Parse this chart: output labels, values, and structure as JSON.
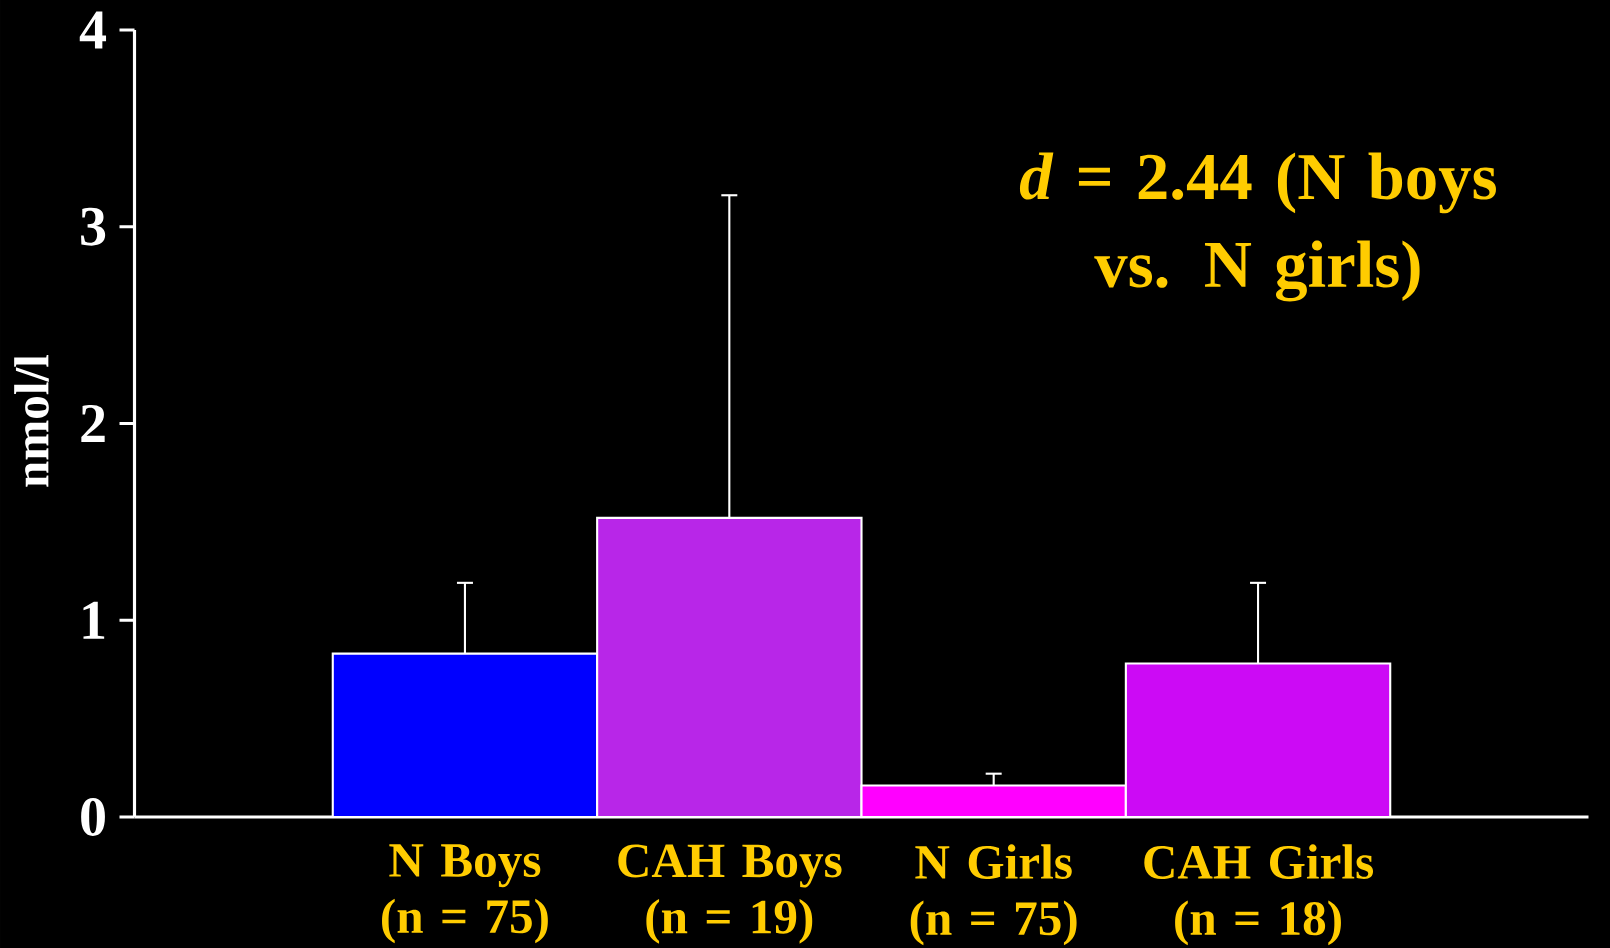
{
  "chart_data": {
    "type": "bar",
    "categories": [
      "N Boys (n = 75)",
      "CAH Boys (n = 19)",
      "N Girls (n = 75)",
      "CAH Girls (n = 18)"
    ],
    "values": [
      0.83,
      1.52,
      0.16,
      0.78
    ],
    "errors": [
      [
        0.83,
        1.19
      ],
      [
        1.52,
        3.16
      ],
      [
        0.16,
        0.22
      ],
      [
        0.78,
        1.19
      ]
    ],
    "colors": [
      "#0000ff",
      "#b826e8",
      "#ff00ff",
      "#cc0af5"
    ],
    "ylabel": "nmol/l",
    "ylim": [
      0,
      4
    ],
    "yticks": [
      0,
      1,
      2,
      3,
      4
    ],
    "annotations": [
      "*d* = 2.44 (N boys vs. N girls)"
    ]
  }
}
